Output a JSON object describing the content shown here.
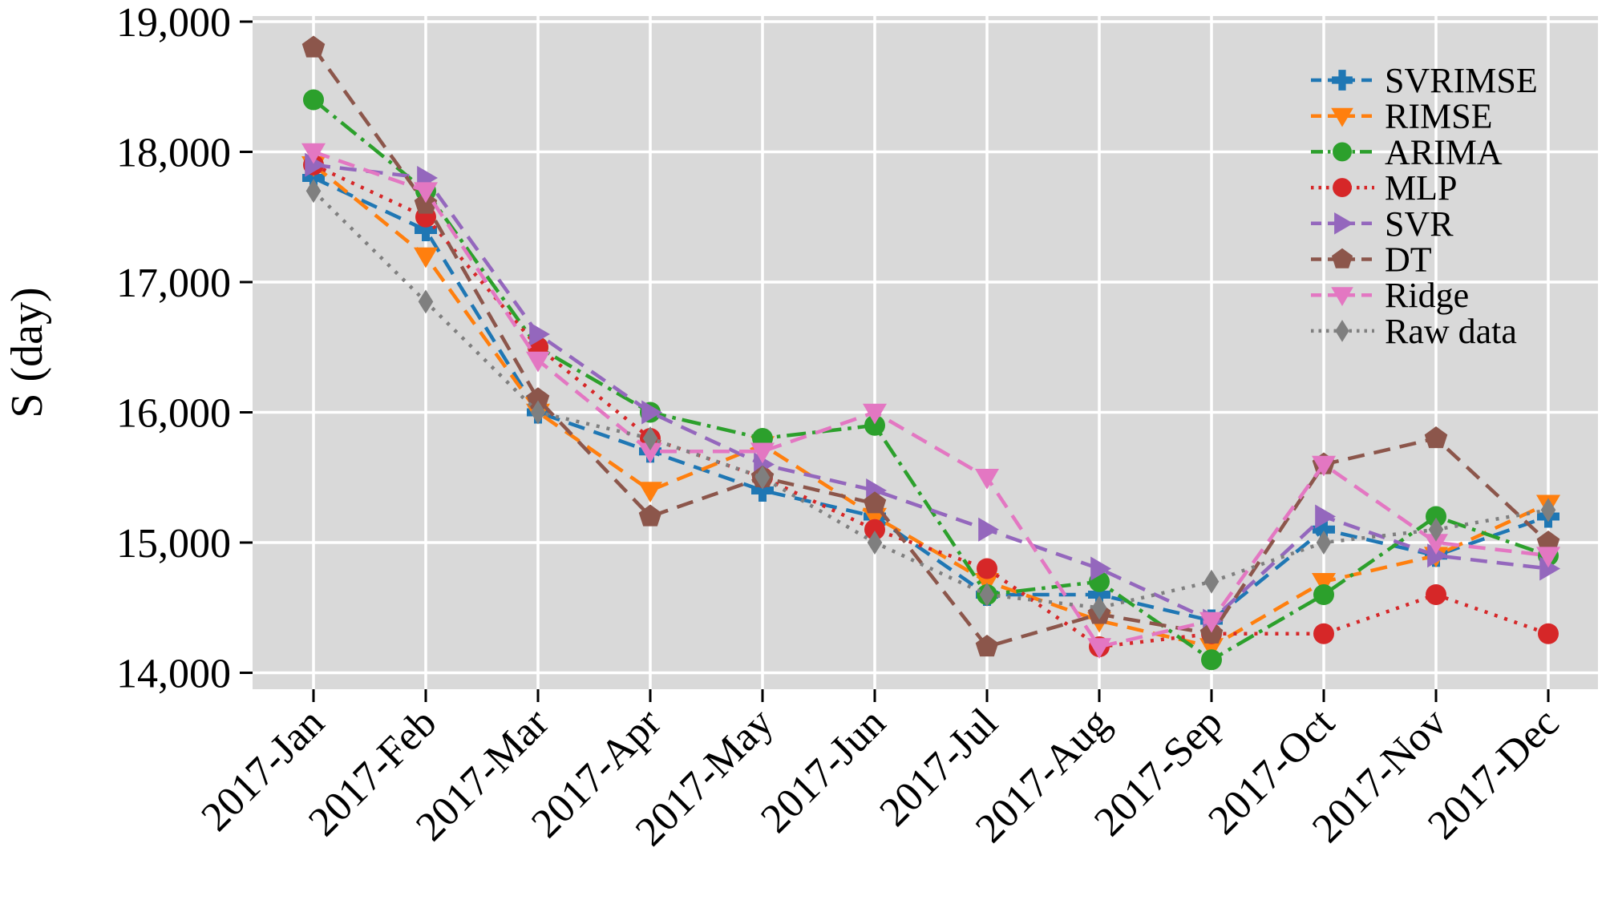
{
  "chart_data": {
    "type": "line",
    "title": "",
    "xlabel": "",
    "ylabel": "S (day)",
    "categories": [
      "2017-Jan",
      "2017-Feb",
      "2017-Mar",
      "2017-Apr",
      "2017-May",
      "2017-Jun",
      "2017-Jul",
      "2017-Aug",
      "2017-Sep",
      "2017-Oct",
      "2017-Nov",
      "2017-Dec"
    ],
    "ylim": [
      13600,
      19100
    ],
    "yticks": [
      14000,
      15000,
      16000,
      17000,
      18000,
      19000
    ],
    "ytick_labels": [
      "14,000",
      "15,000",
      "16,000",
      "17,000",
      "18,000",
      "19,000"
    ],
    "grid": true,
    "plot_background": "#d9d9d9",
    "grid_color": "#ffffff",
    "tick_color": "#000000",
    "legend_position": "upper right",
    "series": [
      {
        "name": "SVRIMSE",
        "color": "#1f77b4",
        "linestyle": "dashed",
        "marker": "plus",
        "values": [
          17800,
          17400,
          16000,
          15700,
          15400,
          15200,
          14600,
          14600,
          14400,
          15100,
          14900,
          15200
        ]
      },
      {
        "name": "RIMSE",
        "color": "#ff7f0e",
        "linestyle": "dashed",
        "marker": "triangle-down",
        "values": [
          17900,
          17200,
          16000,
          15400,
          15750,
          15200,
          14700,
          14400,
          14200,
          14700,
          14900,
          15300
        ]
      },
      {
        "name": "ARIMA",
        "color": "#2ca02c",
        "linestyle": "dashdot",
        "marker": "circle",
        "values": [
          18400,
          17700,
          16500,
          16000,
          15800,
          15900,
          14600,
          14700,
          14100,
          14600,
          15200,
          14900
        ]
      },
      {
        "name": "MLP",
        "color": "#d62728",
        "linestyle": "dotted",
        "marker": "circle",
        "values": [
          17900,
          17500,
          16500,
          15800,
          15500,
          15100,
          14800,
          14200,
          14300,
          14300,
          14600,
          14300
        ]
      },
      {
        "name": "SVR",
        "color": "#9467bd",
        "linestyle": "dashed",
        "marker": "triangle-right",
        "values": [
          17900,
          17800,
          16600,
          16000,
          15600,
          15400,
          15100,
          14800,
          14400,
          15200,
          14900,
          14800
        ]
      },
      {
        "name": "DT",
        "color": "#8c564b",
        "linestyle": "dashed",
        "marker": "pentagon",
        "values": [
          18800,
          17600,
          16100,
          15200,
          15500,
          15300,
          14200,
          14450,
          14300,
          15600,
          15800,
          15000
        ]
      },
      {
        "name": "Ridge",
        "color": "#e377c2",
        "linestyle": "dashed",
        "marker": "triangle-down",
        "values": [
          18000,
          17700,
          16400,
          15700,
          15700,
          16000,
          15500,
          14200,
          14400,
          15600,
          15000,
          14900
        ]
      },
      {
        "name": "Raw data",
        "color": "#7f7f7f",
        "linestyle": "dotted",
        "marker": "diamond",
        "values": [
          17700,
          16850,
          16000,
          15800,
          15500,
          15000,
          14600,
          14500,
          14700,
          15000,
          15100,
          15250
        ]
      }
    ]
  }
}
